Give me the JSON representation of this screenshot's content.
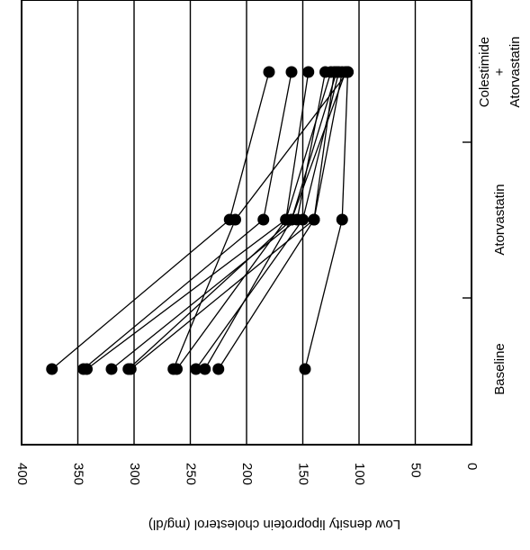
{
  "chart_data": {
    "type": "line",
    "orientation": "rotated-90-clockwise",
    "ylabel": "Low density lipoprotein cholesterol (mg/dl)",
    "ylim": [
      0,
      400
    ],
    "yticks": [
      "0",
      "50",
      "100",
      "150",
      "200",
      "250",
      "300",
      "350",
      "400"
    ],
    "grid": true,
    "categories": [
      "Baseline",
      "Atorvastatin",
      "Atorvastatin + Colestimide"
    ],
    "category_labels": [
      [
        "Baseline"
      ],
      [
        "Atorvastatin"
      ],
      [
        "Atorvastatin",
        "+",
        "Colestimide"
      ]
    ],
    "series": [
      {
        "values": [
          373,
          215,
          180
        ]
      },
      {
        "values": [
          345,
          185,
          160
        ]
      },
      {
        "values": [
          342,
          165,
          145
        ]
      },
      {
        "values": [
          320,
          155,
          130
        ]
      },
      {
        "values": [
          305,
          160,
          120
        ]
      },
      {
        "values": [
          303,
          140,
          115
        ]
      },
      {
        "values": [
          265,
          210,
          110
        ]
      },
      {
        "values": [
          262,
          165,
          125
        ]
      },
      {
        "values": [
          245,
          150,
          118
        ]
      },
      {
        "values": [
          237,
          160,
          112
        ]
      },
      {
        "values": [
          225,
          140,
          122
        ]
      },
      {
        "values": [
          148,
          115,
          110
        ]
      }
    ]
  }
}
